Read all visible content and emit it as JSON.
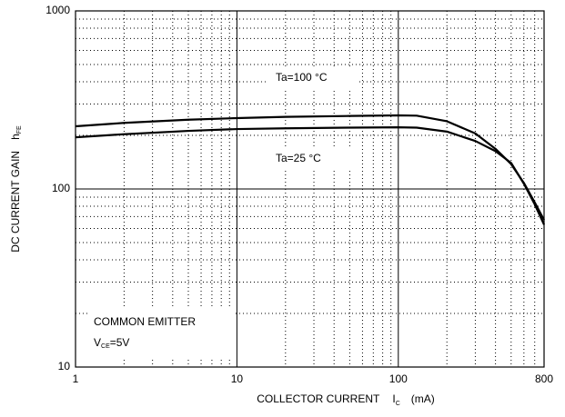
{
  "chart_data": {
    "type": "line",
    "xlabel": "COLLECTOR CURRENT",
    "xlabel_symbol": "I",
    "xlabel_subscript": "C",
    "xlabel_unit": "(mA)",
    "ylabel": "DC CURRENT GAIN",
    "ylabel_symbol": "h",
    "ylabel_subscript": "FE",
    "log_x": true,
    "log_y": true,
    "grid": true,
    "xlim": [
      1,
      800
    ],
    "ylim": [
      10,
      1000
    ],
    "xticks": [
      1,
      10,
      100,
      800
    ],
    "yticks": [
      10,
      100,
      1000
    ],
    "x_minor_ticks": [
      2,
      3,
      4,
      5,
      6,
      7,
      8,
      9,
      20,
      30,
      40,
      50,
      60,
      70,
      80,
      90,
      200,
      300,
      400,
      500,
      600,
      700
    ],
    "y_minor_ticks": [
      20,
      30,
      40,
      50,
      60,
      70,
      80,
      90,
      200,
      300,
      400,
      500,
      600,
      700,
      800,
      900
    ],
    "series": [
      {
        "name": "Ta=100 °C",
        "color": "#000000",
        "x": [
          1,
          2,
          5,
          10,
          20,
          50,
          100,
          130,
          200,
          300,
          400,
          500,
          600,
          700,
          800
        ],
        "values": [
          225,
          235,
          245,
          250,
          254,
          257,
          259,
          258,
          240,
          205,
          168,
          138,
          108,
          84,
          67
        ]
      },
      {
        "name": "Ta=25 °C",
        "color": "#000000",
        "x": [
          1,
          2,
          5,
          10,
          20,
          50,
          100,
          130,
          200,
          300,
          400,
          500,
          600,
          700,
          800
        ],
        "values": [
          195,
          203,
          212,
          217,
          219,
          221,
          222,
          221,
          210,
          186,
          163,
          140,
          107,
          82,
          63
        ]
      }
    ],
    "annotations": [
      "COMMON EMITTER",
      "V",
      "CE",
      "=5V"
    ]
  }
}
